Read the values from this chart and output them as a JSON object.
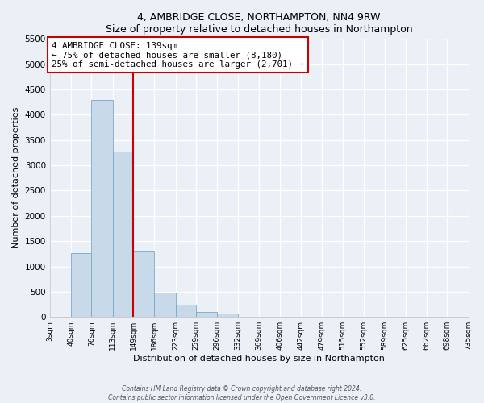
{
  "title": "4, AMBRIDGE CLOSE, NORTHAMPTON, NN4 9RW",
  "subtitle": "Size of property relative to detached houses in Northampton",
  "xlabel": "Distribution of detached houses by size in Northampton",
  "ylabel": "Number of detached properties",
  "bar_color": "#c8daea",
  "bar_edge_color": "#7aa8c8",
  "background_color": "#eaf0f6",
  "grid_color": "#ffffff",
  "annotation_box_color": "#cc0000",
  "vline_color": "#cc0000",
  "vline_x": 149,
  "bin_edges": [
    3,
    40,
    76,
    113,
    149,
    186,
    223,
    259,
    296,
    332,
    369,
    406,
    442,
    479,
    515,
    552,
    589,
    625,
    662,
    698,
    735
  ],
  "bar_heights": [
    0,
    1270,
    4300,
    3280,
    1290,
    480,
    240,
    100,
    60,
    0,
    0,
    0,
    0,
    0,
    0,
    0,
    0,
    0,
    0,
    0
  ],
  "ylim": [
    0,
    5500
  ],
  "yticks": [
    0,
    500,
    1000,
    1500,
    2000,
    2500,
    3000,
    3500,
    4000,
    4500,
    5000,
    5500
  ],
  "annotation_title": "4 AMBRIDGE CLOSE: 139sqm",
  "annotation_line1": "← 75% of detached houses are smaller (8,180)",
  "annotation_line2": "25% of semi-detached houses are larger (2,701) →",
  "footnote1": "Contains HM Land Registry data © Crown copyright and database right 2024.",
  "footnote2": "Contains public sector information licensed under the Open Government Licence v3.0."
}
